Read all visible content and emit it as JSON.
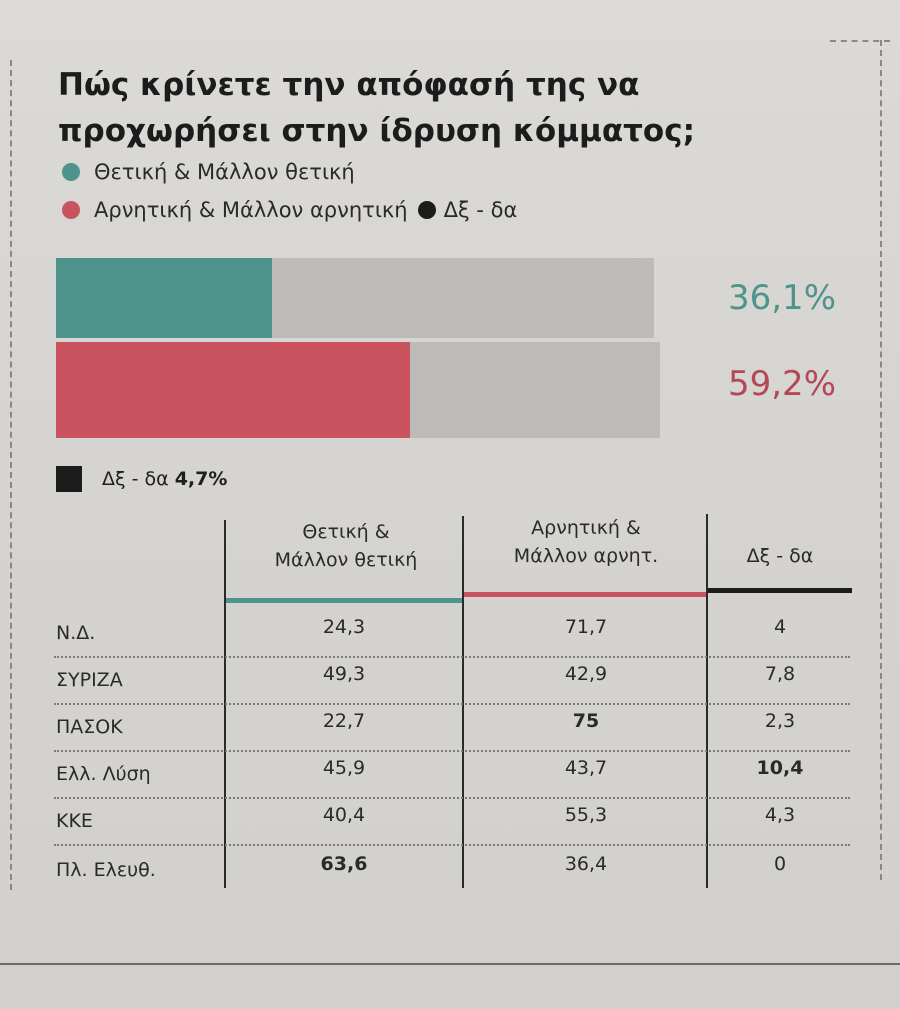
{
  "title": "Πώς κρίνετε την απόφασή της να προχωρήσει στην ίδρυση κόμματος;",
  "legend": {
    "positive": "Θετική & Μάλλον θετική",
    "negative": "Αρνητική & Μάλλον αρνητική",
    "dk": "Δξ - δα"
  },
  "colors": {
    "positive": "#4e948c",
    "negative": "#c95460",
    "dk": "#1c1c1c",
    "track": "#bdbbb8"
  },
  "chart_data": {
    "type": "bar",
    "orientation": "horizontal",
    "title": "Πώς κρίνετε την απόφασή της να προχωρήσει στην ίδρυση κόμματος;",
    "categories": [
      "Θετική & Μάλλον θετική",
      "Αρνητική & Μάλλον αρνητική",
      "Δξ - δα"
    ],
    "values": [
      36.1,
      59.2,
      4.7
    ],
    "labels": [
      "36,1%",
      "59,2%",
      "4,7%"
    ],
    "xlim": [
      0,
      100
    ],
    "xlabel": "",
    "ylabel": ""
  },
  "table": {
    "columns": [
      {
        "line1": "Θετική &",
        "line2": "Μάλλον θετική"
      },
      {
        "line1": "Αρνητική &",
        "line2": "Μάλλον αρνητ."
      },
      {
        "line1": "",
        "line2": "Δξ - δα"
      }
    ],
    "rows": [
      {
        "party": "Ν.Δ.",
        "positive": "24,3",
        "negative": "71,7",
        "dk": "4"
      },
      {
        "party": "ΣΥΡΙΖΑ",
        "positive": "49,3",
        "negative": "42,9",
        "dk": "7,8"
      },
      {
        "party": "ΠΑΣΟΚ",
        "positive": "22,7",
        "negative": "75",
        "dk": "2,3"
      },
      {
        "party": "Ελλ. Λύση",
        "positive": "45,9",
        "negative": "43,7",
        "dk": "10,4"
      },
      {
        "party": "ΚΚΕ",
        "positive": "40,4",
        "negative": "55,3",
        "dk": "4,3"
      },
      {
        "party": "Πλ. Ελευθ.",
        "positive": "63,6",
        "negative": "36,4",
        "dk": "0"
      }
    ],
    "bold_cells": [
      {
        "row": 2,
        "col": "negative"
      },
      {
        "row": 3,
        "col": "dk"
      },
      {
        "row": 5,
        "col": "positive"
      }
    ]
  }
}
